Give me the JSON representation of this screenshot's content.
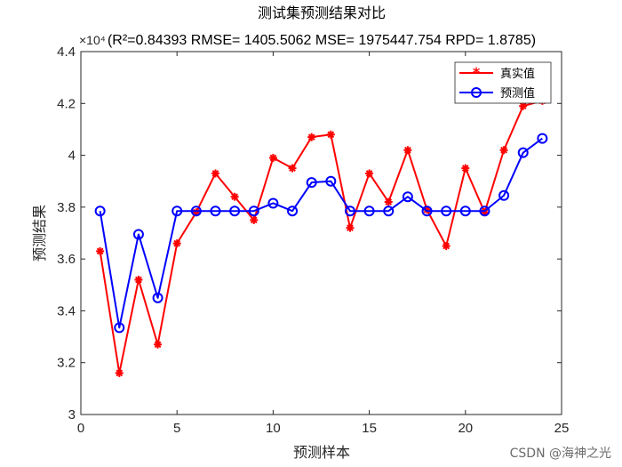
{
  "chart_data": {
    "type": "line",
    "title": "测试集预测结果对比",
    "subtitle": "(R²=0.84393 RMSE= 1405.5062 MSE= 1975447.754 RPD= 1.8785)",
    "exponent_label": "×10⁴",
    "xlabel": "预测样本",
    "ylabel": "预测结果",
    "xlim": [
      0,
      25
    ],
    "ylim": [
      3.0,
      4.4
    ],
    "x_ticks": [
      "0",
      "5",
      "10",
      "15",
      "20",
      "25"
    ],
    "y_ticks": [
      "3",
      "3.2",
      "3.4",
      "3.6",
      "3.8",
      "4",
      "4.2",
      "4.4"
    ],
    "grid": false,
    "legend_position": "top-right",
    "x": [
      1,
      2,
      3,
      4,
      5,
      6,
      7,
      8,
      9,
      10,
      11,
      12,
      13,
      14,
      15,
      16,
      17,
      18,
      19,
      20,
      21,
      22,
      23,
      24
    ],
    "series": [
      {
        "name": "真实值",
        "color": "#ff0000",
        "marker": "asterisk",
        "values": [
          3.63,
          3.16,
          3.52,
          3.27,
          3.66,
          3.78,
          3.93,
          3.84,
          3.75,
          3.99,
          3.95,
          4.07,
          4.08,
          3.72,
          3.93,
          3.82,
          4.02,
          3.79,
          3.65,
          3.95,
          3.78,
          4.02,
          4.19,
          4.21
        ]
      },
      {
        "name": "预测值",
        "color": "#0000ff",
        "marker": "circle",
        "values": [
          3.785,
          3.335,
          3.695,
          3.45,
          3.785,
          3.785,
          3.785,
          3.785,
          3.785,
          3.815,
          3.785,
          3.895,
          3.9,
          3.785,
          3.785,
          3.785,
          3.84,
          3.785,
          3.785,
          3.785,
          3.785,
          3.845,
          4.01,
          4.065
        ]
      }
    ]
  },
  "watermark": "CSDN @海神之光"
}
